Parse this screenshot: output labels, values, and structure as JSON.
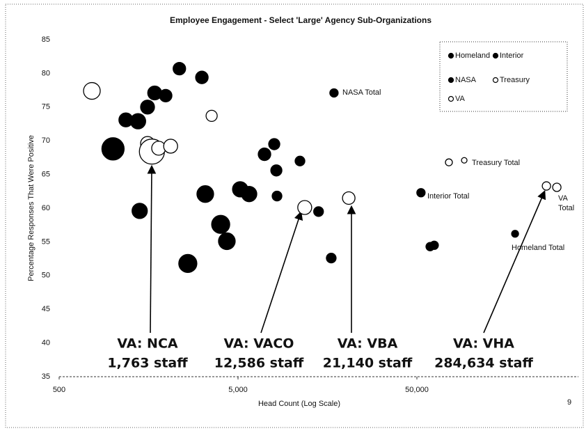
{
  "chart_data": {
    "type": "bubble",
    "title": "Employee Engagement - Select 'Large' Agency Sub-Organizations",
    "x_label": "Head Count (Log Scale)",
    "y_label": "Percentage Responses That Were Positive",
    "xlim": [
      500,
      400000
    ],
    "xscale": "log",
    "xticks": [
      500,
      {
        "value": 5000,
        "label": "5,000"
      },
      {
        "value": 50000,
        "label": "50,000"
      }
    ],
    "ylim": [
      35,
      85
    ],
    "yticks": [
      35,
      40,
      45,
      50,
      55,
      60,
      65,
      70,
      75,
      80,
      85
    ],
    "legend": "upper right",
    "series": [
      {
        "name": "Homeland",
        "color": "#000000",
        "x": [
          1000,
          1410,
          2620,
          4330,
          5140,
          177000,
          59300,
          62500
        ],
        "values": [
          68.8,
          59.6,
          51.8,
          55.1,
          62.8,
          56.2,
          54.3,
          54.5
        ],
        "sizes": [
          16,
          11,
          13,
          12,
          11,
          5,
          6,
          6
        ]
      },
      {
        "name": "Interior",
        "color": "#000000",
        "x": [
          1180,
          1380,
          3280,
          4000,
          5770,
          8260,
          14100,
          16600,
          52700
        ],
        "values": [
          73.1,
          72.9,
          62.1,
          57.6,
          62.1,
          61.8,
          59.5,
          52.6,
          62.3
        ],
        "sizes": [
          10,
          11,
          12,
          13,
          11,
          7,
          7,
          7,
          6
        ]
      },
      {
        "name": "NASA",
        "color": "#000000",
        "x": [
          1560,
          1710,
          1970,
          2350,
          3140,
          7030,
          7970,
          8190,
          11100,
          17200
        ],
        "values": [
          75.0,
          77.1,
          76.7,
          80.7,
          79.4,
          68.0,
          69.5,
          65.6,
          67.0,
          77.1
        ],
        "sizes": [
          10,
          10,
          9,
          9,
          9,
          9,
          8,
          8,
          7,
          6
        ]
      },
      {
        "name": "Treasury",
        "color": "#ffffff",
        "x": [
          75500,
          92000
        ],
        "values": [
          66.8,
          67.1
        ],
        "sizes": [
          5,
          4
        ]
      },
      {
        "name": "VA",
        "color": "#ffffff",
        "x": [
          762,
          1560,
          1650,
          1800,
          2100,
          3560,
          11800,
          20800,
          265000,
          303000
        ],
        "values": [
          77.4,
          69.6,
          68.4,
          68.9,
          69.2,
          73.7,
          60.1,
          61.5,
          63.3,
          63.1
        ],
        "sizes": [
          12,
          10,
          18,
          10,
          10,
          8,
          10,
          9,
          6,
          6
        ]
      }
    ],
    "annotations": [
      "NASA Total",
      "Treasury Total",
      "Interior Total",
      "VA",
      "Total",
      "Homeland Total"
    ],
    "callouts": [
      {
        "name": "VA: NCA",
        "staff": "1,763 staff"
      },
      {
        "name": "VA: VACO",
        "staff": "12,586 staff"
      },
      {
        "name": "VA: VBA",
        "staff": "21,140 staff"
      },
      {
        "name": "VA: VHA",
        "staff": "284,634 staff"
      }
    ]
  },
  "page_number": "9"
}
